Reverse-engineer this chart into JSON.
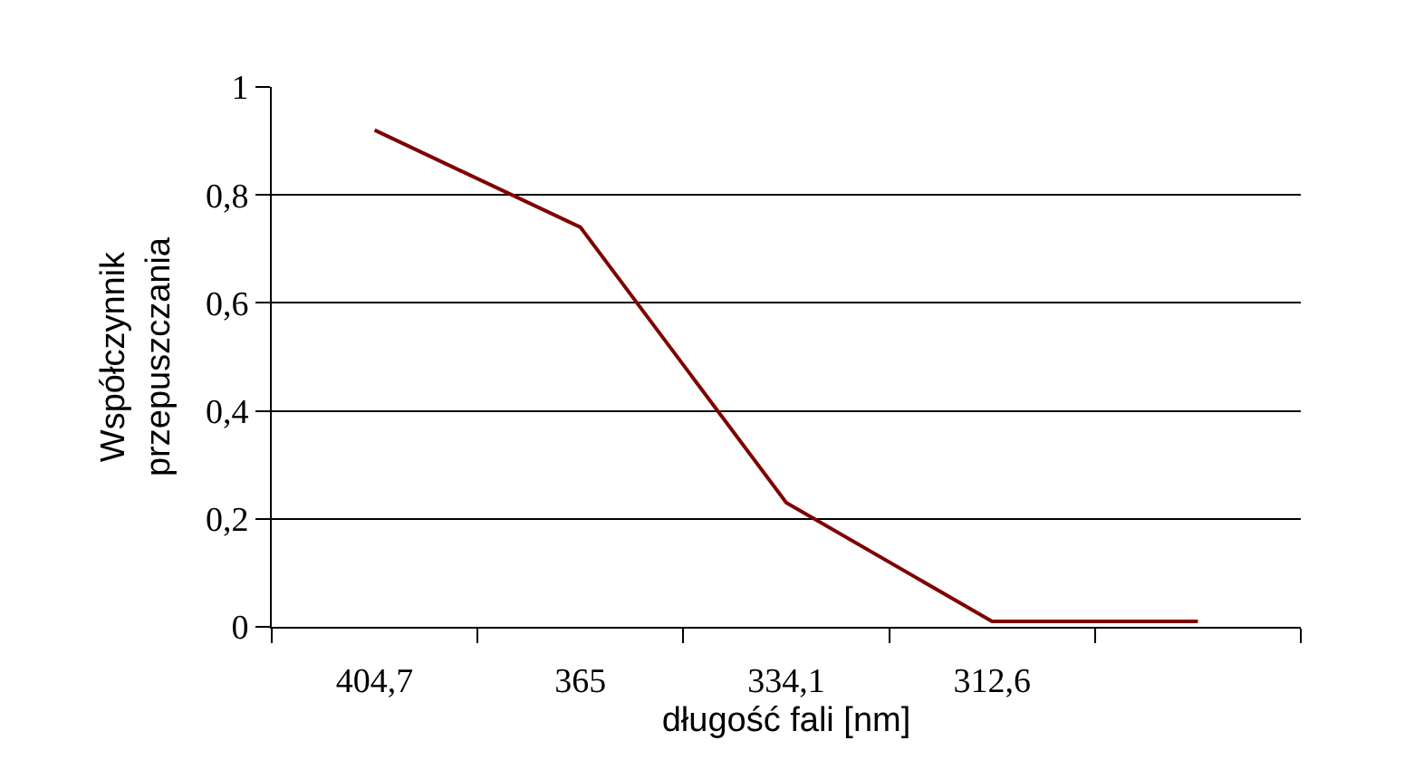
{
  "chart_data": {
    "type": "line",
    "xlabel": "długość fali [nm]",
    "ylabel": "Współczynnik\nprzepuszczania",
    "categories": [
      "404,7",
      "365",
      "334,1",
      "312,6",
      null
    ],
    "series": [
      {
        "color": "#800000",
        "values": [
          0.92,
          0.74,
          0.23,
          0.01,
          0.01
        ]
      }
    ],
    "ylim": [
      0,
      1
    ],
    "yticks": [
      {
        "value": 0,
        "label": "0"
      },
      {
        "value": 0.2,
        "label": "0,2"
      },
      {
        "value": 0.4,
        "label": "0,4"
      },
      {
        "value": 0.6,
        "label": "0,6"
      },
      {
        "value": 0.8,
        "label": "0,8"
      },
      {
        "value": 1,
        "label": "1"
      }
    ],
    "grid": "y",
    "legend": false,
    "marker": "none",
    "line_style": "solid"
  }
}
